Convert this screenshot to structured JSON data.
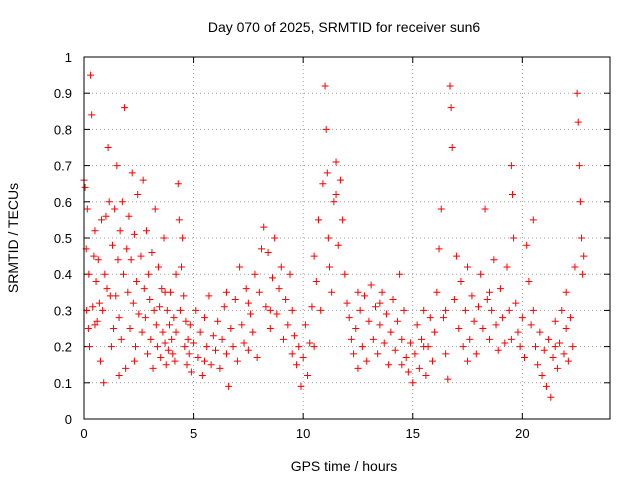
{
  "chart_data": {
    "type": "scatter",
    "title": "Day 070 of 2025, SRMTID for receiver sun6",
    "xlabel": "GPS time / hours",
    "ylabel": "SRMTID / TECUs",
    "xlim": [
      0,
      24
    ],
    "ylim": [
      0,
      1
    ],
    "xticks": [
      0,
      5,
      10,
      15,
      20
    ],
    "xtick_labels": [
      "0",
      "5",
      "10",
      "15",
      "20"
    ],
    "yticks": [
      0,
      0.1,
      0.2,
      0.3,
      0.4,
      0.5,
      0.6,
      0.7,
      0.8,
      0.9,
      1
    ],
    "ytick_labels": [
      "0",
      "0.1",
      "0.2",
      "0.3",
      "0.4",
      "0.5",
      "0.6",
      "0.7",
      "0.8",
      "0.9",
      "1"
    ],
    "grid": true,
    "marker": "+",
    "marker_color": "#ff0000",
    "series": [
      {
        "name": "SRMTID",
        "points": [
          [
            0.0,
            0.66
          ],
          [
            0.05,
            0.64
          ],
          [
            0.1,
            0.47
          ],
          [
            0.12,
            0.3
          ],
          [
            0.15,
            0.58
          ],
          [
            0.2,
            0.25
          ],
          [
            0.22,
            0.4
          ],
          [
            0.3,
            0.95
          ],
          [
            0.35,
            0.84
          ],
          [
            0.4,
            0.31
          ],
          [
            0.45,
            0.45
          ],
          [
            0.5,
            0.26
          ],
          [
            0.55,
            0.38
          ],
          [
            0.6,
            0.27
          ],
          [
            0.65,
            0.44
          ],
          [
            0.7,
            0.32
          ],
          [
            0.75,
            0.16
          ],
          [
            0.8,
            0.55
          ],
          [
            0.85,
            0.3
          ],
          [
            0.9,
            0.1
          ],
          [
            0.95,
            0.4
          ],
          [
            1.0,
            0.56
          ],
          [
            1.05,
            0.36
          ],
          [
            1.1,
            0.75
          ],
          [
            1.15,
            0.6
          ],
          [
            1.2,
            0.34
          ],
          [
            1.25,
            0.2
          ],
          [
            1.3,
            0.48
          ],
          [
            1.35,
            0.25
          ],
          [
            1.4,
            0.58
          ],
          [
            1.45,
            0.34
          ],
          [
            1.5,
            0.7
          ],
          [
            1.55,
            0.44
          ],
          [
            1.6,
            0.28
          ],
          [
            1.65,
            0.52
          ],
          [
            1.7,
            0.22
          ],
          [
            1.75,
            0.6
          ],
          [
            1.8,
            0.4
          ],
          [
            1.85,
            0.86
          ],
          [
            1.9,
            0.14
          ],
          [
            1.95,
            0.47
          ],
          [
            2.0,
            0.35
          ],
          [
            2.05,
            0.56
          ],
          [
            2.1,
            0.25
          ],
          [
            2.15,
            0.44
          ],
          [
            2.2,
            0.68
          ],
          [
            2.25,
            0.32
          ],
          [
            2.3,
            0.51
          ],
          [
            2.35,
            0.2
          ],
          [
            2.4,
            0.38
          ],
          [
            2.45,
            0.62
          ],
          [
            2.5,
            0.29
          ],
          [
            2.6,
            0.45
          ],
          [
            2.65,
            0.24
          ],
          [
            2.7,
            0.66
          ],
          [
            2.75,
            0.36
          ],
          [
            2.8,
            0.28
          ],
          [
            2.85,
            0.52
          ],
          [
            2.9,
            0.18
          ],
          [
            2.95,
            0.4
          ],
          [
            3.0,
            0.33
          ],
          [
            3.05,
            0.22
          ],
          [
            3.1,
            0.46
          ],
          [
            3.15,
            0.14
          ],
          [
            3.2,
            0.3
          ],
          [
            3.25,
            0.58
          ],
          [
            3.3,
            0.26
          ],
          [
            3.35,
            0.2
          ],
          [
            3.4,
            0.42
          ],
          [
            3.45,
            0.31
          ],
          [
            3.5,
            0.17
          ],
          [
            3.55,
            0.36
          ],
          [
            3.6,
            0.24
          ],
          [
            3.65,
            0.5
          ],
          [
            3.7,
            0.21
          ],
          [
            3.75,
            0.15
          ],
          [
            3.8,
            0.3
          ],
          [
            3.85,
            0.19
          ],
          [
            3.9,
            0.26
          ],
          [
            3.95,
            0.35
          ],
          [
            4.0,
            0.22
          ],
          [
            4.05,
            0.18
          ],
          [
            4.1,
            0.28
          ],
          [
            4.15,
            0.16
          ],
          [
            4.2,
            0.24
          ],
          [
            4.3,
            0.65
          ],
          [
            4.35,
            0.55
          ],
          [
            4.4,
            0.3
          ],
          [
            4.45,
            0.42
          ],
          [
            4.5,
            0.5
          ],
          [
            4.55,
            0.34
          ],
          [
            4.6,
            0.2
          ],
          [
            4.65,
            0.27
          ],
          [
            4.7,
            0.15
          ],
          [
            4.75,
            0.22
          ],
          [
            4.8,
            0.18
          ],
          [
            4.85,
            0.26
          ],
          [
            4.9,
            0.13
          ],
          [
            5.0,
            0.21
          ],
          [
            5.1,
            0.3
          ],
          [
            5.2,
            0.17
          ],
          [
            5.3,
            0.24
          ],
          [
            5.4,
            0.12
          ],
          [
            5.5,
            0.28
          ],
          [
            5.6,
            0.2
          ],
          [
            5.7,
            0.34
          ],
          [
            5.8,
            0.15
          ],
          [
            5.9,
            0.23
          ],
          [
            6.0,
            0.19
          ],
          [
            6.1,
            0.27
          ],
          [
            6.2,
            0.14
          ],
          [
            6.3,
            0.22
          ],
          [
            6.4,
            0.31
          ],
          [
            6.5,
            0.18
          ],
          [
            6.6,
            0.09
          ],
          [
            6.7,
            0.25
          ],
          [
            6.8,
            0.2
          ],
          [
            6.9,
            0.33
          ],
          [
            7.0,
            0.16
          ],
          [
            7.1,
            0.42
          ],
          [
            7.2,
            0.26
          ],
          [
            7.3,
            0.21
          ],
          [
            7.4,
            0.36
          ],
          [
            7.5,
            0.19
          ],
          [
            7.6,
            0.29
          ],
          [
            7.7,
            0.24
          ],
          [
            7.8,
            0.4
          ],
          [
            7.9,
            0.17
          ],
          [
            8.0,
            0.35
          ],
          [
            8.1,
            0.47
          ],
          [
            8.2,
            0.53
          ],
          [
            8.3,
            0.31
          ],
          [
            8.4,
            0.46
          ],
          [
            8.5,
            0.25
          ],
          [
            8.6,
            0.39
          ],
          [
            8.7,
            0.5
          ],
          [
            8.8,
            0.29
          ],
          [
            8.9,
            0.36
          ],
          [
            9.0,
            0.42
          ],
          [
            9.1,
            0.22
          ],
          [
            9.2,
            0.33
          ],
          [
            9.3,
            0.26
          ],
          [
            9.4,
            0.4
          ],
          [
            9.5,
            0.18
          ],
          [
            9.6,
            0.23
          ],
          [
            9.7,
            0.15
          ],
          [
            9.8,
            0.2
          ],
          [
            9.9,
            0.09
          ],
          [
            10.0,
            0.17
          ],
          [
            10.1,
            0.26
          ],
          [
            10.2,
            0.12
          ],
          [
            10.3,
            0.21
          ],
          [
            10.4,
            0.31
          ],
          [
            10.5,
            0.45
          ],
          [
            10.6,
            0.38
          ],
          [
            10.7,
            0.55
          ],
          [
            10.8,
            0.3
          ],
          [
            10.9,
            0.65
          ],
          [
            11.0,
            0.92
          ],
          [
            11.05,
            0.8
          ],
          [
            11.1,
            0.68
          ],
          [
            11.15,
            0.5
          ],
          [
            11.2,
            0.42
          ],
          [
            11.3,
            0.35
          ],
          [
            11.4,
            0.6
          ],
          [
            11.5,
            0.71
          ],
          [
            11.6,
            0.48
          ],
          [
            11.7,
            0.66
          ],
          [
            11.8,
            0.55
          ],
          [
            11.9,
            0.4
          ],
          [
            12.0,
            0.32
          ],
          [
            12.1,
            0.28
          ],
          [
            12.2,
            0.22
          ],
          [
            12.3,
            0.18
          ],
          [
            12.4,
            0.25
          ],
          [
            12.5,
            0.14
          ],
          [
            12.6,
            0.3
          ],
          [
            12.7,
            0.2
          ],
          [
            12.8,
            0.34
          ],
          [
            12.9,
            0.16
          ],
          [
            13.0,
            0.27
          ],
          [
            13.1,
            0.37
          ],
          [
            13.2,
            0.22
          ],
          [
            13.3,
            0.31
          ],
          [
            13.4,
            0.18
          ],
          [
            13.5,
            0.26
          ],
          [
            13.6,
            0.35
          ],
          [
            13.7,
            0.21
          ],
          [
            13.8,
            0.29
          ],
          [
            13.9,
            0.15
          ],
          [
            14.0,
            0.24
          ],
          [
            14.1,
            0.33
          ],
          [
            14.2,
            0.19
          ],
          [
            14.3,
            0.27
          ],
          [
            14.4,
            0.4
          ],
          [
            14.5,
            0.22
          ],
          [
            14.6,
            0.3
          ],
          [
            14.7,
            0.17
          ],
          [
            14.8,
            0.13
          ],
          [
            14.9,
            0.21
          ],
          [
            15.0,
            0.1
          ],
          [
            15.1,
            0.18
          ],
          [
            15.2,
            0.26
          ],
          [
            15.3,
            0.14
          ],
          [
            15.4,
            0.22
          ],
          [
            15.5,
            0.3
          ],
          [
            15.6,
            0.12
          ],
          [
            15.7,
            0.2
          ],
          [
            15.8,
            0.28
          ],
          [
            15.9,
            0.16
          ],
          [
            16.0,
            0.24
          ],
          [
            16.1,
            0.35
          ],
          [
            16.2,
            0.47
          ],
          [
            16.3,
            0.58
          ],
          [
            16.4,
            0.28
          ],
          [
            16.5,
            0.18
          ],
          [
            16.6,
            0.11
          ],
          [
            16.7,
            0.92
          ],
          [
            16.75,
            0.86
          ],
          [
            16.8,
            0.75
          ],
          [
            16.9,
            0.33
          ],
          [
            17.0,
            0.45
          ],
          [
            17.1,
            0.25
          ],
          [
            17.2,
            0.38
          ],
          [
            17.3,
            0.2
          ],
          [
            17.4,
            0.3
          ],
          [
            17.5,
            0.42
          ],
          [
            17.6,
            0.22
          ],
          [
            17.7,
            0.34
          ],
          [
            17.8,
            0.27
          ],
          [
            17.9,
            0.18
          ],
          [
            18.0,
            0.31
          ],
          [
            18.1,
            0.4
          ],
          [
            18.2,
            0.25
          ],
          [
            18.3,
            0.58
          ],
          [
            18.4,
            0.33
          ],
          [
            18.5,
            0.22
          ],
          [
            18.6,
            0.3
          ],
          [
            18.7,
            0.44
          ],
          [
            18.8,
            0.26
          ],
          [
            18.9,
            0.19
          ],
          [
            19.0,
            0.36
          ],
          [
            19.1,
            0.28
          ],
          [
            19.2,
            0.21
          ],
          [
            19.3,
            0.42
          ],
          [
            19.4,
            0.3
          ],
          [
            19.5,
            0.7
          ],
          [
            19.55,
            0.62
          ],
          [
            19.6,
            0.5
          ],
          [
            19.7,
            0.32
          ],
          [
            19.8,
            0.24
          ],
          [
            19.9,
            0.2
          ],
          [
            20.0,
            0.28
          ],
          [
            20.1,
            0.17
          ],
          [
            20.2,
            0.48
          ],
          [
            20.3,
            0.38
          ],
          [
            20.4,
            0.26
          ],
          [
            20.5,
            0.55
          ],
          [
            20.6,
            0.2
          ],
          [
            20.7,
            0.15
          ],
          [
            20.8,
            0.24
          ],
          [
            20.9,
            0.12
          ],
          [
            21.0,
            0.19
          ],
          [
            21.1,
            0.09
          ],
          [
            21.2,
            0.22
          ],
          [
            21.3,
            0.06
          ],
          [
            21.4,
            0.17
          ],
          [
            21.5,
            0.27
          ],
          [
            21.6,
            0.14
          ],
          [
            21.7,
            0.21
          ],
          [
            21.8,
            0.3
          ],
          [
            21.9,
            0.18
          ],
          [
            22.0,
            0.25
          ],
          [
            22.1,
            0.16
          ],
          [
            22.2,
            0.28
          ],
          [
            22.3,
            0.2
          ],
          [
            22.4,
            0.42
          ],
          [
            22.5,
            0.9
          ],
          [
            22.55,
            0.82
          ],
          [
            22.6,
            0.7
          ],
          [
            22.65,
            0.6
          ],
          [
            22.7,
            0.5
          ],
          [
            22.75,
            0.4
          ],
          [
            22.8,
            0.45
          ],
          [
            0.25,
            0.2
          ],
          [
            0.5,
            0.52
          ],
          [
            1.6,
            0.12
          ],
          [
            2.3,
            0.16
          ],
          [
            3.7,
            0.35
          ],
          [
            4.2,
            0.4
          ],
          [
            5.5,
            0.16
          ],
          [
            6.5,
            0.35
          ],
          [
            7.5,
            0.32
          ],
          [
            8.5,
            0.3
          ],
          [
            9.5,
            0.3
          ],
          [
            10.5,
            0.2
          ],
          [
            11.5,
            0.62
          ],
          [
            12.5,
            0.35
          ],
          [
            13.5,
            0.32
          ],
          [
            14.5,
            0.15
          ],
          [
            15.5,
            0.2
          ],
          [
            16.5,
            0.3
          ],
          [
            17.5,
            0.16
          ],
          [
            18.5,
            0.35
          ],
          [
            19.5,
            0.22
          ],
          [
            20.5,
            0.3
          ],
          [
            21.5,
            0.2
          ],
          [
            22.0,
            0.35
          ]
        ]
      }
    ]
  }
}
